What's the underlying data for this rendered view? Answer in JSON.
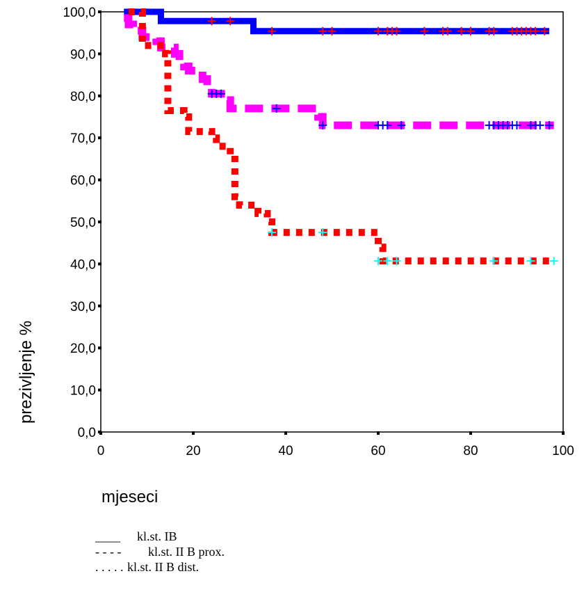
{
  "chart_data": {
    "type": "line",
    "title": "",
    "xlabel": "mjeseci",
    "ylabel": "prezivljenje %",
    "xlim": [
      0,
      100
    ],
    "ylim": [
      0,
      100
    ],
    "x_ticks": [
      "0",
      "20",
      "40",
      "60",
      "80",
      "100"
    ],
    "y_ticks": [
      "0,0",
      "10,0",
      "20,0",
      "30,0",
      "40,0",
      "50,0",
      "60,0",
      "70,0",
      "80,0",
      "90,0",
      "100,0"
    ],
    "grid": false,
    "legend_position": "bottom-left",
    "series": [
      {
        "name": "kl.st. IB",
        "legend_marker": "____",
        "color": "#0000ff",
        "censor_color": "#ff0000",
        "style": "solid",
        "steps": [
          [
            5,
            100
          ],
          [
            13,
            97.8
          ],
          [
            33,
            95.4
          ],
          [
            97,
            95.4
          ]
        ],
        "censored": [
          [
            24,
            97.8
          ],
          [
            28,
            97.8
          ],
          [
            37,
            95.4
          ],
          [
            48,
            95.4
          ],
          [
            50,
            95.4
          ],
          [
            60,
            95.4
          ],
          [
            62,
            95.4
          ],
          [
            63,
            95.4
          ],
          [
            64,
            95.4
          ],
          [
            70,
            95.4
          ],
          [
            74,
            95.4
          ],
          [
            75,
            95.4
          ],
          [
            78,
            95.4
          ],
          [
            80,
            95.4
          ],
          [
            84,
            95.4
          ],
          [
            85,
            95.4
          ],
          [
            89,
            95.4
          ],
          [
            90,
            95.4
          ],
          [
            91,
            95.4
          ],
          [
            92,
            95.4
          ],
          [
            93,
            95.4
          ],
          [
            94,
            95.4
          ],
          [
            96,
            95.4
          ]
        ]
      },
      {
        "name": "kl.st. II B prox.",
        "legend_marker": "- - - -",
        "color": "#ff00ff",
        "censor_color": "#0000ff",
        "style": "dashed",
        "steps": [
          [
            5,
            98.5
          ],
          [
            6,
            97
          ],
          [
            7,
            95.5
          ],
          [
            9,
            94
          ],
          [
            12,
            93
          ],
          [
            13,
            91.5
          ],
          [
            16,
            90
          ],
          [
            17,
            88.5
          ],
          [
            18,
            87
          ],
          [
            19,
            86
          ],
          [
            22,
            84
          ],
          [
            23,
            82
          ],
          [
            24,
            80.5
          ],
          [
            27,
            79
          ],
          [
            28,
            77
          ],
          [
            47,
            75
          ],
          [
            48,
            73
          ],
          [
            98,
            73
          ]
        ],
        "censored": [
          [
            24,
            80.5
          ],
          [
            25,
            80.5
          ],
          [
            26,
            80.5
          ],
          [
            38,
            77
          ],
          [
            48,
            73
          ],
          [
            60,
            73
          ],
          [
            61,
            73
          ],
          [
            62,
            73
          ],
          [
            65,
            73
          ],
          [
            84,
            73
          ],
          [
            85,
            73
          ],
          [
            86,
            73
          ],
          [
            87,
            73
          ],
          [
            88,
            73
          ],
          [
            89,
            73
          ],
          [
            90,
            73
          ],
          [
            93,
            73
          ],
          [
            94,
            73
          ],
          [
            95,
            73
          ],
          [
            97,
            73
          ]
        ]
      },
      {
        "name": "kl.st. II B dist.",
        "legend_marker": ". . . . .",
        "color": "#ff0000",
        "censor_color": "#00ffff",
        "style": "dotted",
        "steps": [
          [
            6,
            100
          ],
          [
            9,
            92
          ],
          [
            14,
            90
          ],
          [
            14.5,
            76.5
          ],
          [
            18,
            75
          ],
          [
            19,
            71.5
          ],
          [
            24,
            70
          ],
          [
            25,
            68
          ],
          [
            28,
            66
          ],
          [
            29,
            56
          ],
          [
            30,
            54
          ],
          [
            34,
            52
          ],
          [
            36,
            50
          ],
          [
            37,
            47.5
          ],
          [
            60,
            44
          ],
          [
            61,
            40.7
          ],
          [
            97,
            40.7
          ]
        ],
        "censored": [
          [
            37,
            47.5
          ],
          [
            48,
            47.5
          ],
          [
            60,
            40.7
          ],
          [
            62,
            40.7
          ],
          [
            64,
            40.7
          ],
          [
            85,
            40.7
          ],
          [
            93,
            40.7
          ],
          [
            98,
            40.7
          ]
        ]
      }
    ]
  }
}
